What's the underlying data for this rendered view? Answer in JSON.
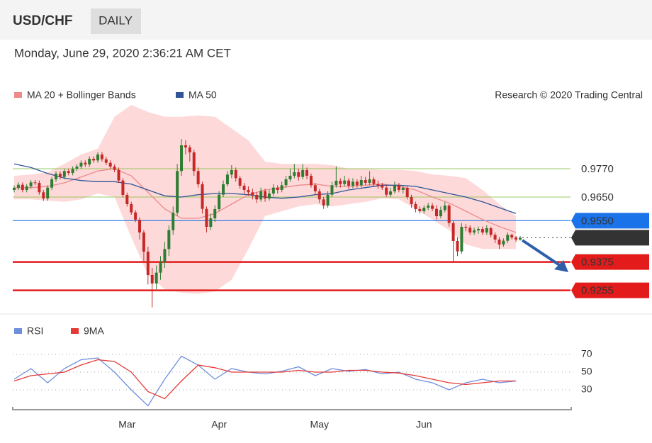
{
  "header": {
    "symbol": "USD/CHF",
    "period": "DAILY",
    "timestamp": "Monday, June 29, 2020 2:36:21 AM CET"
  },
  "chart_data": [
    {
      "type": "candlestick",
      "up_color": "#2e7d32",
      "down_color": "#c62828",
      "xlim": [
        0,
        121
      ],
      "ylim": [
        0.9164,
        1.0049
      ],
      "ohlc": [
        [
          0.968,
          0.9699,
          0.967,
          0.9689
        ],
        [
          0.9689,
          0.9712,
          0.9679,
          0.9702
        ],
        [
          0.9702,
          0.9712,
          0.967,
          0.968
        ],
        [
          0.968,
          0.9705,
          0.967,
          0.9695
        ],
        [
          0.9695,
          0.9722,
          0.9685,
          0.9712
        ],
        [
          0.9712,
          0.9722,
          0.97,
          0.971
        ],
        [
          0.971,
          0.972,
          0.966,
          0.967
        ],
        [
          0.967,
          0.968,
          0.9634,
          0.9644
        ],
        [
          0.9644,
          0.97,
          0.9634,
          0.969
        ],
        [
          0.969,
          0.9735,
          0.968,
          0.9725
        ],
        [
          0.9725,
          0.9759,
          0.9715,
          0.9749
        ],
        [
          0.9749,
          0.9759,
          0.9725,
          0.9735
        ],
        [
          0.9735,
          0.977,
          0.9725,
          0.976
        ],
        [
          0.976,
          0.977,
          0.9742,
          0.9752
        ],
        [
          0.9752,
          0.978,
          0.9742,
          0.977
        ],
        [
          0.977,
          0.9789,
          0.976,
          0.9779
        ],
        [
          0.9779,
          0.9805,
          0.9769,
          0.9795
        ],
        [
          0.9795,
          0.9805,
          0.9778,
          0.9788
        ],
        [
          0.9788,
          0.9822,
          0.9778,
          0.9812
        ],
        [
          0.9812,
          0.9822,
          0.9795,
          0.9805
        ],
        [
          0.9805,
          0.984,
          0.9795,
          0.983
        ],
        [
          0.983,
          0.984,
          0.98,
          0.981
        ],
        [
          0.981,
          0.982,
          0.9785,
          0.9795
        ],
        [
          0.9795,
          0.9805,
          0.9769,
          0.9779
        ],
        [
          0.9779,
          0.9789,
          0.9755,
          0.9765
        ],
        [
          0.9765,
          0.9775,
          0.971,
          0.972
        ],
        [
          0.972,
          0.973,
          0.9649,
          0.9659
        ],
        [
          0.9659,
          0.9669,
          0.961,
          0.962
        ],
        [
          0.962,
          0.963,
          0.9575,
          0.9585
        ],
        [
          0.9585,
          0.9595,
          0.9544,
          0.9554
        ],
        [
          0.9554,
          0.9564,
          0.947,
          0.95
        ],
        [
          0.95,
          0.951,
          0.938,
          0.9419
        ],
        [
          0.9419,
          0.944,
          0.928,
          0.932
        ],
        [
          0.932,
          0.935,
          0.9183,
          0.9284
        ],
        [
          0.9284,
          0.936,
          0.926,
          0.933
        ],
        [
          0.933,
          0.94,
          0.93,
          0.9374
        ],
        [
          0.9374,
          0.946,
          0.935,
          0.943
        ],
        [
          0.943,
          0.953,
          0.94,
          0.951
        ],
        [
          0.951,
          0.961,
          0.949,
          0.9584
        ],
        [
          0.9584,
          0.979,
          0.957,
          0.976
        ],
        [
          0.976,
          0.9896,
          0.974,
          0.9869
        ],
        [
          0.9869,
          0.989,
          0.983,
          0.986
        ],
        [
          0.986,
          0.987,
          0.98,
          0.9839
        ],
        [
          0.9839,
          0.985,
          0.974,
          0.976
        ],
        [
          0.976,
          0.9775,
          0.969,
          0.9704
        ],
        [
          0.9704,
          0.9715,
          0.958,
          0.96
        ],
        [
          0.96,
          0.961,
          0.95,
          0.9524
        ],
        [
          0.9524,
          0.958,
          0.951,
          0.956
        ],
        [
          0.956,
          0.9615,
          0.9545,
          0.9599
        ],
        [
          0.9599,
          0.9675,
          0.959,
          0.966
        ],
        [
          0.966,
          0.972,
          0.965,
          0.9704
        ],
        [
          0.9704,
          0.976,
          0.9695,
          0.9745
        ],
        [
          0.9745,
          0.9785,
          0.973,
          0.9764
        ],
        [
          0.9764,
          0.9775,
          0.9715,
          0.973
        ],
        [
          0.973,
          0.974,
          0.9685,
          0.9698
        ],
        [
          0.9698,
          0.971,
          0.9665,
          0.968
        ],
        [
          0.968,
          0.9695,
          0.9655,
          0.967
        ],
        [
          0.967,
          0.9685,
          0.964,
          0.9659
        ],
        [
          0.9659,
          0.967,
          0.9625,
          0.964
        ],
        [
          0.964,
          0.969,
          0.963,
          0.9675
        ],
        [
          0.9675,
          0.9685,
          0.963,
          0.9644
        ],
        [
          0.9644,
          0.968,
          0.9635,
          0.9665
        ],
        [
          0.9665,
          0.9705,
          0.9655,
          0.969
        ],
        [
          0.969,
          0.97,
          0.9665,
          0.968
        ],
        [
          0.968,
          0.9715,
          0.967,
          0.97
        ],
        [
          0.97,
          0.974,
          0.969,
          0.9725
        ],
        [
          0.9725,
          0.977,
          0.9715,
          0.974
        ],
        [
          0.974,
          0.979,
          0.973,
          0.9755
        ],
        [
          0.9755,
          0.977,
          0.972,
          0.9735
        ],
        [
          0.9735,
          0.979,
          0.9725,
          0.9764
        ],
        [
          0.9764,
          0.9775,
          0.9725,
          0.974
        ],
        [
          0.974,
          0.975,
          0.969,
          0.97
        ],
        [
          0.97,
          0.971,
          0.966,
          0.9674
        ],
        [
          0.9674,
          0.9685,
          0.9625,
          0.964
        ],
        [
          0.964,
          0.965,
          0.96,
          0.9614
        ],
        [
          0.9614,
          0.9675,
          0.9605,
          0.966
        ],
        [
          0.966,
          0.9715,
          0.965,
          0.97
        ],
        [
          0.97,
          0.978,
          0.969,
          0.9719
        ],
        [
          0.9719,
          0.973,
          0.969,
          0.9705
        ],
        [
          0.9705,
          0.974,
          0.9695,
          0.972
        ],
        [
          0.972,
          0.973,
          0.9685,
          0.9698
        ],
        [
          0.9698,
          0.973,
          0.9688,
          0.9715
        ],
        [
          0.9715,
          0.9725,
          0.969,
          0.97
        ],
        [
          0.97,
          0.974,
          0.969,
          0.9722
        ],
        [
          0.9722,
          0.9735,
          0.97,
          0.971
        ],
        [
          0.971,
          0.976,
          0.97,
          0.9725
        ],
        [
          0.9725,
          0.9735,
          0.9695,
          0.9705
        ],
        [
          0.9705,
          0.972,
          0.9685,
          0.9698
        ],
        [
          0.9698,
          0.971,
          0.968,
          0.969
        ],
        [
          0.969,
          0.97,
          0.965,
          0.966
        ],
        [
          0.966,
          0.969,
          0.965,
          0.9674
        ],
        [
          0.9674,
          0.9715,
          0.9665,
          0.97
        ],
        [
          0.97,
          0.971,
          0.967,
          0.968
        ],
        [
          0.968,
          0.97,
          0.9665,
          0.9689
        ],
        [
          0.9689,
          0.9695,
          0.964,
          0.965
        ],
        [
          0.965,
          0.966,
          0.9605,
          0.962
        ],
        [
          0.962,
          0.963,
          0.9585,
          0.9599
        ],
        [
          0.9599,
          0.961,
          0.958,
          0.959
        ],
        [
          0.959,
          0.9615,
          0.958,
          0.9605
        ],
        [
          0.9605,
          0.9625,
          0.9595,
          0.9614
        ],
        [
          0.9614,
          0.9625,
          0.959,
          0.96
        ],
        [
          0.96,
          0.9615,
          0.9555,
          0.9569
        ],
        [
          0.9569,
          0.961,
          0.956,
          0.9595
        ],
        [
          0.9595,
          0.963,
          0.9585,
          0.9614
        ],
        [
          0.9614,
          0.962,
          0.9525,
          0.954
        ],
        [
          0.954,
          0.955,
          0.9374,
          0.9464
        ],
        [
          0.9464,
          0.948,
          0.94,
          0.942
        ],
        [
          0.942,
          0.954,
          0.941,
          0.9524
        ],
        [
          0.9524,
          0.9535,
          0.9505,
          0.952
        ],
        [
          0.952,
          0.953,
          0.949,
          0.95
        ],
        [
          0.95,
          0.952,
          0.949,
          0.9509
        ],
        [
          0.9509,
          0.9525,
          0.9495,
          0.9515
        ],
        [
          0.9515,
          0.9525,
          0.949,
          0.95
        ],
        [
          0.95,
          0.953,
          0.949,
          0.9518
        ],
        [
          0.9518,
          0.9525,
          0.948,
          0.949
        ],
        [
          0.949,
          0.95,
          0.9455,
          0.947
        ],
        [
          0.947,
          0.948,
          0.943,
          0.9449
        ],
        [
          0.9449,
          0.9475,
          0.944,
          0.9465
        ],
        [
          0.9465,
          0.95,
          0.9455,
          0.949
        ],
        [
          0.949,
          0.9495,
          0.947,
          0.9479
        ],
        [
          0.9479,
          0.9485,
          0.946,
          0.947
        ],
        [
          0.947,
          0.9485,
          0.9465,
          0.9478
        ]
      ],
      "x": [
        0,
        4,
        8,
        12,
        16,
        20,
        24,
        28,
        32,
        36,
        40,
        44,
        48,
        52,
        56,
        60,
        64,
        68,
        72,
        76,
        80,
        84,
        88,
        92,
        96,
        100,
        104,
        108,
        112,
        116,
        120
      ],
      "series": [
        {
          "name": "MA 20 + Bollinger Bands",
          "color": "#ef8a8a",
          "band_color": "#fdd9d9",
          "values": [
            0.9689,
            0.969,
            0.9695,
            0.971,
            0.9735,
            0.976,
            0.977,
            0.974,
            0.967,
            0.96,
            0.956,
            0.956,
            0.958,
            0.962,
            0.966,
            0.968,
            0.969,
            0.97,
            0.9705,
            0.9695,
            0.9695,
            0.97,
            0.9705,
            0.9695,
            0.968,
            0.965,
            0.9625,
            0.959,
            0.9555,
            0.9525,
            0.95
          ],
          "upper": [
            0.974,
            0.9745,
            0.9755,
            0.979,
            0.983,
            0.9855,
            0.999,
            1.004,
            1.001,
            0.999,
            0.999,
            0.9995,
            0.999,
            0.994,
            0.989,
            0.98,
            0.979,
            0.979,
            0.979,
            0.9785,
            0.977,
            0.977,
            0.9765,
            0.9765,
            0.976,
            0.9745,
            0.974,
            0.973,
            0.968,
            0.962,
            0.957
          ],
          "lower": [
            0.964,
            0.964,
            0.9635,
            0.963,
            0.964,
            0.9665,
            0.965,
            0.948,
            0.932,
            0.926,
            0.9245,
            0.924,
            0.925,
            0.93,
            0.943,
            0.957,
            0.959,
            0.961,
            0.962,
            0.961,
            0.962,
            0.963,
            0.9645,
            0.964,
            0.96,
            0.9555,
            0.951,
            0.945,
            0.943,
            0.943,
            0.943
          ]
        },
        {
          "name": "MA 50",
          "color": "#2f5597",
          "values": [
            0.979,
            0.9775,
            0.975,
            0.973,
            0.972,
            0.9715,
            0.9715,
            0.9705,
            0.968,
            0.9655,
            0.965,
            0.966,
            0.9665,
            0.9665,
            0.966,
            0.965,
            0.9645,
            0.965,
            0.966,
            0.9665,
            0.968,
            0.969,
            0.97,
            0.97,
            0.9695,
            0.968,
            0.9665,
            0.965,
            0.963,
            0.9605,
            0.958
          ]
        }
      ],
      "levels": [
        {
          "value": 0.977,
          "label": "0.9770",
          "color": "#8bc34a",
          "line": "thin",
          "box": false
        },
        {
          "value": 0.965,
          "label": "0.9650",
          "color": "#8bc34a",
          "line": "thin",
          "box": false
        },
        {
          "value": 0.955,
          "label": "0.9550",
          "color": "#1a73e8",
          "line": "solid",
          "box": true
        },
        {
          "value": 0.9478,
          "color": "#333333",
          "line": "dotted",
          "box": true
        },
        {
          "value": 0.9375,
          "color": "#e31b1b",
          "line": "thick",
          "box": true
        },
        {
          "value": 0.9255,
          "color": "#e31b1b",
          "line": "thick",
          "box": true
        }
      ],
      "credit": "Research © 2020 Trading Central"
    },
    {
      "type": "line",
      "xlim": [
        0,
        121
      ],
      "ylim": [
        8,
        78
      ],
      "yticks": [
        70,
        50,
        30
      ],
      "grid": true,
      "xticks": [
        {
          "value": 27,
          "label": "Mar"
        },
        {
          "value": 49,
          "label": "Apr"
        },
        {
          "value": 73,
          "label": "May"
        },
        {
          "value": 98,
          "label": "Jun"
        }
      ],
      "x": [
        0,
        4,
        8,
        12,
        16,
        20,
        24,
        28,
        32,
        36,
        40,
        44,
        48,
        52,
        56,
        60,
        64,
        68,
        72,
        76,
        80,
        84,
        88,
        92,
        96,
        100,
        104,
        108,
        112,
        116,
        120
      ],
      "series": [
        {
          "name": "RSI",
          "color": "#6f8fdc",
          "values": [
            42,
            54,
            38,
            54,
            64,
            66,
            50,
            30,
            12,
            42,
            68,
            58,
            42,
            54,
            50,
            48,
            51,
            56,
            46,
            54,
            51,
            53,
            48,
            50,
            42,
            38,
            30,
            38,
            42,
            38,
            40
          ]
        },
        {
          "name": "9MA",
          "color": "#e53935",
          "values": [
            40,
            46,
            48,
            50,
            58,
            64,
            62,
            50,
            28,
            20,
            40,
            58,
            55,
            50,
            50,
            50,
            50,
            52,
            50,
            50,
            52,
            52,
            50,
            49,
            46,
            42,
            38,
            36,
            38,
            40,
            40
          ]
        }
      ]
    }
  ]
}
